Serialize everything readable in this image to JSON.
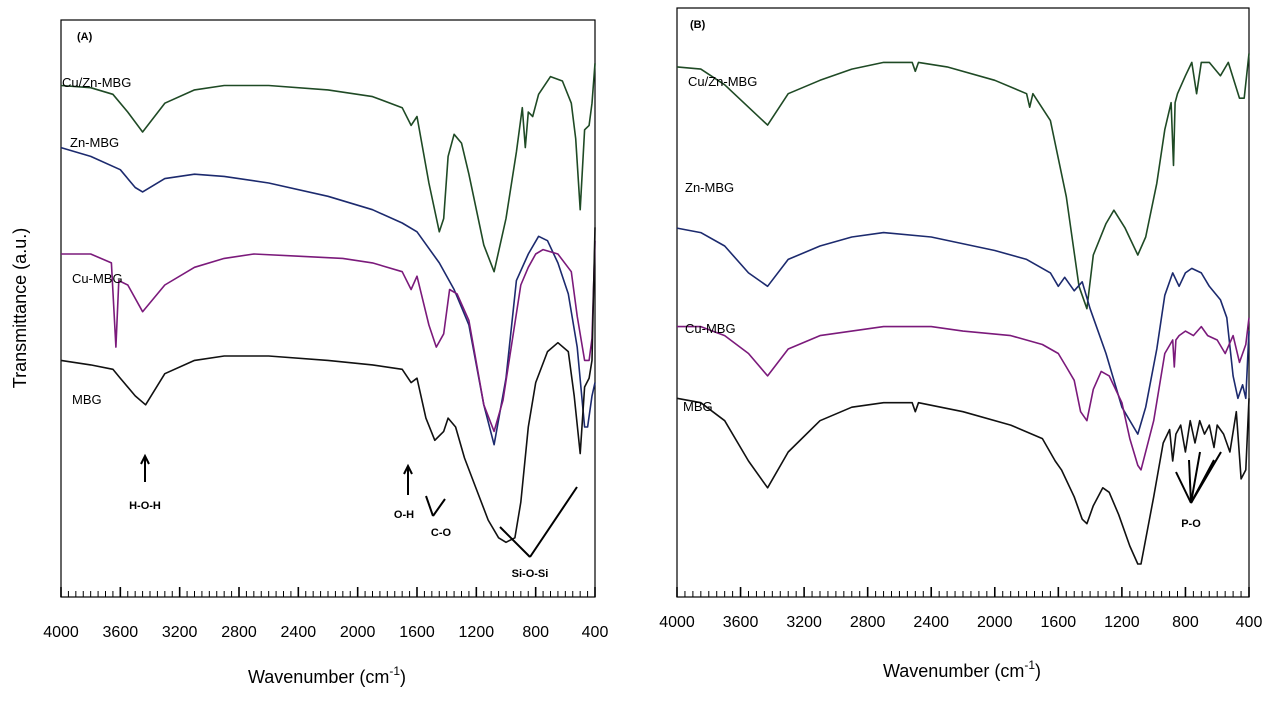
{
  "chart_data": [
    {
      "type": "line",
      "panel": "(A)",
      "xlabel": "Wavenumber (cm",
      "xlabel_sup": "-1",
      "xlabel_close": ")",
      "ylabel": "Transmittance (a.u.)",
      "xlim": [
        4000,
        400
      ],
      "x_ticks": [
        4000,
        3600,
        3200,
        2800,
        2400,
        2000,
        1600,
        1200,
        800,
        400
      ],
      "x_tick_labels": [
        "4000",
        "3600",
        "3200",
        "2800",
        "2400",
        "2000",
        "1600",
        "1200",
        "800",
        "400"
      ],
      "series": [
        {
          "name": "Cu/Zn-MBG",
          "color": "#1f4a25",
          "x": [
            4000,
            3800,
            3650,
            3550,
            3450,
            3300,
            3100,
            2900,
            2600,
            2200,
            1900,
            1700,
            1640,
            1600,
            1520,
            1450,
            1420,
            1390,
            1350,
            1300,
            1250,
            1150,
            1080,
            1000,
            930,
            890,
            870,
            850,
            820,
            780,
            700,
            620,
            560,
            530,
            500,
            470,
            440,
            420,
            400
          ],
          "y": [
            0.92,
            0.915,
            0.9,
            0.86,
            0.815,
            0.88,
            0.91,
            0.92,
            0.92,
            0.91,
            0.895,
            0.87,
            0.83,
            0.85,
            0.7,
            0.59,
            0.62,
            0.76,
            0.81,
            0.79,
            0.72,
            0.56,
            0.5,
            0.62,
            0.77,
            0.87,
            0.78,
            0.86,
            0.85,
            0.9,
            0.94,
            0.93,
            0.88,
            0.8,
            0.64,
            0.82,
            0.83,
            0.88,
            0.97
          ]
        },
        {
          "name": "Zn-MBG",
          "color": "#1c2a6e",
          "x": [
            4000,
            3800,
            3600,
            3500,
            3450,
            3300,
            3100,
            2900,
            2600,
            2200,
            1900,
            1700,
            1600,
            1450,
            1350,
            1250,
            1150,
            1080,
            1000,
            930,
            850,
            780,
            720,
            650,
            580,
            520,
            470,
            450,
            420,
            400
          ],
          "y": [
            0.78,
            0.76,
            0.73,
            0.69,
            0.68,
            0.71,
            0.72,
            0.715,
            0.7,
            0.67,
            0.64,
            0.61,
            0.59,
            0.52,
            0.46,
            0.38,
            0.2,
            0.11,
            0.26,
            0.48,
            0.54,
            0.58,
            0.57,
            0.52,
            0.45,
            0.33,
            0.15,
            0.15,
            0.22,
            0.25
          ]
        },
        {
          "name": "Cu-MBG",
          "color": "#7b1a7b",
          "x": [
            4000,
            3800,
            3660,
            3630,
            3610,
            3550,
            3450,
            3300,
            3100,
            2900,
            2700,
            2400,
            2100,
            1900,
            1700,
            1640,
            1600,
            1520,
            1470,
            1420,
            1380,
            1330,
            1250,
            1150,
            1080,
            1020,
            960,
            900,
            850,
            800,
            750,
            650,
            560,
            520,
            470,
            440,
            420,
            400
          ],
          "y": [
            0.54,
            0.54,
            0.52,
            0.33,
            0.48,
            0.47,
            0.41,
            0.47,
            0.51,
            0.53,
            0.54,
            0.535,
            0.53,
            0.52,
            0.5,
            0.46,
            0.49,
            0.38,
            0.33,
            0.36,
            0.46,
            0.45,
            0.39,
            0.2,
            0.14,
            0.21,
            0.34,
            0.47,
            0.51,
            0.54,
            0.55,
            0.54,
            0.5,
            0.4,
            0.3,
            0.3,
            0.35,
            0.57
          ]
        },
        {
          "name": "MBG",
          "color": "#111111",
          "x": [
            4000,
            3800,
            3650,
            3600,
            3500,
            3430,
            3300,
            3100,
            2900,
            2600,
            2200,
            1900,
            1700,
            1640,
            1600,
            1540,
            1480,
            1420,
            1390,
            1340,
            1280,
            1200,
            1120,
            1050,
            1000,
            940,
            900,
            850,
            800,
            720,
            650,
            580,
            540,
            500,
            470,
            440,
            420,
            400
          ],
          "y": [
            0.3,
            0.29,
            0.28,
            0.26,
            0.22,
            0.2,
            0.27,
            0.3,
            0.31,
            0.31,
            0.3,
            0.29,
            0.28,
            0.25,
            0.26,
            0.17,
            0.12,
            0.14,
            0.17,
            0.15,
            0.08,
            0.01,
            -0.06,
            -0.1,
            -0.11,
            -0.1,
            -0.02,
            0.15,
            0.25,
            0.32,
            0.34,
            0.32,
            0.22,
            0.09,
            0.24,
            0.26,
            0.3,
            0.6
          ]
        }
      ],
      "series_labels": [
        "Cu/Zn-MBG",
        "Zn-MBG",
        "Cu-MBG",
        "MBG"
      ],
      "annotations": [
        {
          "text": "H-O-H",
          "x": 3430
        },
        {
          "text": "O-H",
          "x": 1630
        },
        {
          "text": "C-O",
          "x": 1450
        },
        {
          "text": "Si-O-Si",
          "x": 800
        }
      ]
    },
    {
      "type": "line",
      "panel": "(B)",
      "xlabel": "Wavenumber (cm",
      "xlabel_sup": "-1",
      "xlabel_close": ")",
      "xlim": [
        4000,
        400
      ],
      "x_ticks": [
        4000,
        3600,
        3200,
        2800,
        2400,
        2000,
        1600,
        1200,
        800,
        400
      ],
      "x_tick_labels": [
        "4000",
        "3600",
        "3200",
        "2800",
        "2400",
        "2000",
        "1600",
        "1200",
        "800",
        "400"
      ],
      "series": [
        {
          "name": "Cu/Zn-MBG",
          "color": "#1f4a25",
          "x": [
            4000,
            3850,
            3700,
            3550,
            3430,
            3300,
            3100,
            2900,
            2700,
            2520,
            2500,
            2480,
            2300,
            2000,
            1800,
            1780,
            1760,
            1650,
            1550,
            1470,
            1420,
            1380,
            1300,
            1250,
            1180,
            1100,
            1050,
            980,
            930,
            890,
            875,
            865,
            850,
            800,
            760,
            730,
            700,
            650,
            580,
            530,
            460,
            430,
            400
          ],
          "y": [
            0.94,
            0.935,
            0.9,
            0.85,
            0.81,
            0.88,
            0.91,
            0.935,
            0.95,
            0.95,
            0.93,
            0.95,
            0.94,
            0.91,
            0.88,
            0.85,
            0.88,
            0.82,
            0.65,
            0.45,
            0.4,
            0.52,
            0.59,
            0.62,
            0.58,
            0.52,
            0.56,
            0.68,
            0.8,
            0.86,
            0.72,
            0.86,
            0.88,
            0.92,
            0.95,
            0.88,
            0.95,
            0.95,
            0.92,
            0.95,
            0.87,
            0.87,
            0.97
          ]
        },
        {
          "name": "Zn-MBG",
          "color": "#1c2a6e",
          "x": [
            4000,
            3850,
            3700,
            3550,
            3430,
            3300,
            3100,
            2900,
            2700,
            2400,
            2000,
            1800,
            1650,
            1600,
            1560,
            1500,
            1450,
            1400,
            1300,
            1200,
            1100,
            1050,
            980,
            930,
            880,
            840,
            800,
            760,
            700,
            650,
            580,
            540,
            500,
            470,
            440,
            420,
            400
          ],
          "y": [
            0.58,
            0.57,
            0.54,
            0.48,
            0.45,
            0.51,
            0.54,
            0.56,
            0.57,
            0.56,
            0.53,
            0.51,
            0.48,
            0.45,
            0.47,
            0.44,
            0.46,
            0.4,
            0.3,
            0.18,
            0.12,
            0.18,
            0.31,
            0.43,
            0.48,
            0.45,
            0.48,
            0.49,
            0.48,
            0.45,
            0.42,
            0.38,
            0.25,
            0.2,
            0.23,
            0.2,
            0.35
          ]
        },
        {
          "name": "Cu-MBG",
          "color": "#7b1a7b",
          "x": [
            4000,
            3850,
            3700,
            3550,
            3430,
            3300,
            3100,
            2900,
            2700,
            2400,
            2200,
            1900,
            1700,
            1600,
            1550,
            1500,
            1460,
            1420,
            1380,
            1330,
            1280,
            1200,
            1150,
            1100,
            1080,
            1000,
            930,
            880,
            870,
            860,
            840,
            800,
            750,
            700,
            660,
            600,
            550,
            500,
            460,
            420,
            400
          ],
          "y": [
            0.36,
            0.36,
            0.34,
            0.3,
            0.25,
            0.31,
            0.34,
            0.35,
            0.36,
            0.36,
            0.35,
            0.34,
            0.32,
            0.3,
            0.27,
            0.24,
            0.17,
            0.15,
            0.22,
            0.26,
            0.25,
            0.19,
            0.11,
            0.05,
            0.04,
            0.15,
            0.3,
            0.33,
            0.27,
            0.33,
            0.34,
            0.35,
            0.34,
            0.36,
            0.34,
            0.33,
            0.3,
            0.34,
            0.28,
            0.32,
            0.38
          ]
        },
        {
          "name": "MBG",
          "color": "#111111",
          "x": [
            4000,
            3850,
            3700,
            3550,
            3430,
            3300,
            3100,
            2900,
            2700,
            2520,
            2500,
            2480,
            2200,
            1900,
            1700,
            1620,
            1580,
            1500,
            1450,
            1420,
            1380,
            1320,
            1280,
            1220,
            1150,
            1100,
            1080,
            1000,
            940,
            900,
            880,
            860,
            830,
            800,
            770,
            740,
            710,
            680,
            650,
            620,
            600,
            560,
            520,
            480,
            450,
            420,
            400
          ],
          "y": [
            0.2,
            0.19,
            0.15,
            0.06,
            0.0,
            0.08,
            0.15,
            0.18,
            0.19,
            0.19,
            0.17,
            0.19,
            0.17,
            0.14,
            0.11,
            0.06,
            0.04,
            -0.02,
            -0.07,
            -0.08,
            -0.04,
            0.0,
            -0.01,
            -0.06,
            -0.13,
            -0.17,
            -0.17,
            -0.02,
            0.1,
            0.13,
            0.06,
            0.12,
            0.14,
            0.08,
            0.15,
            0.1,
            0.15,
            0.12,
            0.14,
            0.09,
            0.14,
            0.12,
            0.08,
            0.17,
            0.02,
            0.04,
            0.2
          ]
        }
      ],
      "series_labels": [
        "Cu/Zn-MBG",
        "Zn-MBG",
        "Cu-MBG",
        "MBG"
      ],
      "annotations": [
        {
          "text": "P-O",
          "x": 780
        }
      ]
    }
  ]
}
